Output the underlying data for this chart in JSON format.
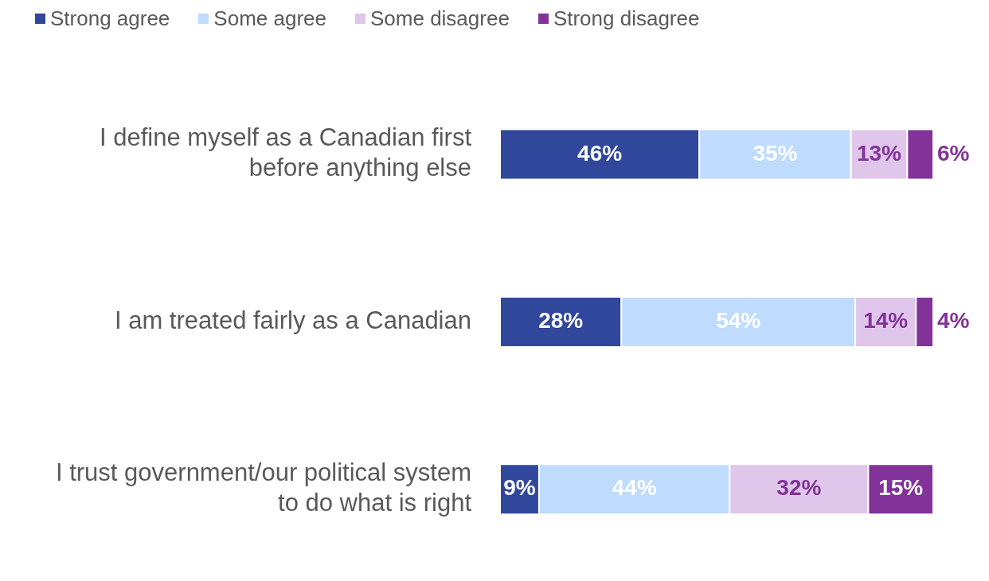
{
  "chart_data": {
    "type": "bar",
    "orientation": "horizontal",
    "stacked": true,
    "legend": "top left",
    "grid": false,
    "categories": [
      "I define myself as a Canadian first before anything else",
      "I am treated fairly as a Canadian",
      "I trust government/our political system to do what is right"
    ],
    "series": [
      {
        "name": "Strong agree",
        "color": "#30479c",
        "values": [
          46,
          28,
          9
        ],
        "value_labels": [
          "46%",
          "28%",
          "9%"
        ]
      },
      {
        "name": "Some agree",
        "color": "#bfdbfe",
        "values": [
          35,
          54,
          44
        ],
        "value_labels": [
          "35%",
          "54%",
          "44%"
        ]
      },
      {
        "name": "Some disagree",
        "color": "#e0c6ea",
        "values": [
          13,
          14,
          32
        ],
        "value_labels": [
          "13%",
          "14%",
          "32%"
        ]
      },
      {
        "name": "Strong disagree",
        "color": "#83329a",
        "values": [
          6,
          4,
          15
        ],
        "value_labels": [
          "6%",
          "4%",
          "15%"
        ]
      }
    ]
  }
}
